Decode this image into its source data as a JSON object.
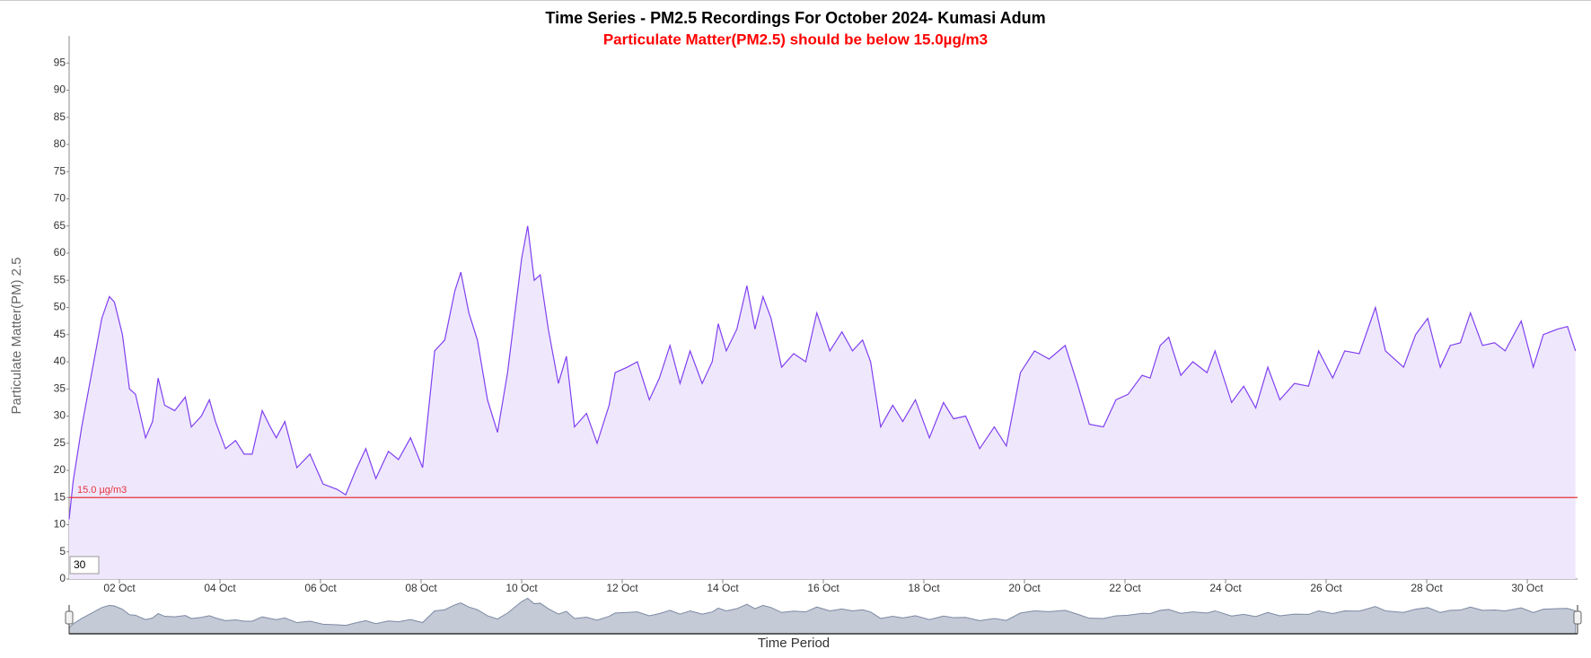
{
  "chart_data": {
    "type": "area",
    "title": "Time Series - PM2.5 Recordings For October 2024- Kumasi Adum",
    "subtitle": "Particulate Matter(PM2.5) should be below 15.0µg/m3",
    "y_label": "Particulate Matter(PM) 2.5",
    "x_label": "Time Period",
    "range_box": "30",
    "threshold": {
      "value": 15,
      "label": "15.0 µg/m3",
      "color": "#e8323c"
    },
    "line_color": "#8040f0",
    "fill_color": "#efe8fd",
    "grid": false,
    "xlim": [
      1,
      31
    ],
    "ylim": [
      0,
      100
    ],
    "yticks": [
      0,
      5,
      10,
      15,
      20,
      25,
      30,
      35,
      40,
      45,
      50,
      55,
      60,
      65,
      70,
      75,
      80,
      85,
      90,
      95
    ],
    "xticks": [
      {
        "value": 2,
        "label": "02 Oct"
      },
      {
        "value": 4,
        "label": "04 Oct"
      },
      {
        "value": 6,
        "label": "06 Oct"
      },
      {
        "value": 8,
        "label": "08 Oct"
      },
      {
        "value": 10,
        "label": "10 Oct"
      },
      {
        "value": 12,
        "label": "12 Oct"
      },
      {
        "value": 14,
        "label": "14 Oct"
      },
      {
        "value": 16,
        "label": "16 Oct"
      },
      {
        "value": 18,
        "label": "18 Oct"
      },
      {
        "value": 20,
        "label": "20 Oct"
      },
      {
        "value": 22,
        "label": "22 Oct"
      },
      {
        "value": 24,
        "label": "24 Oct"
      },
      {
        "value": 26,
        "label": "26 Oct"
      },
      {
        "value": 28,
        "label": "28 Oct"
      },
      {
        "value": 30,
        "label": "30 Oct"
      }
    ],
    "x": [
      1.0,
      1.08,
      1.25,
      1.45,
      1.65,
      1.8,
      1.9,
      2.06,
      2.2,
      2.32,
      2.52,
      2.66,
      2.77,
      2.9,
      3.1,
      3.31,
      3.43,
      3.63,
      3.79,
      3.91,
      4.11,
      4.31,
      4.48,
      4.64,
      4.84,
      5.0,
      5.12,
      5.29,
      5.53,
      5.79,
      6.05,
      6.33,
      6.5,
      6.7,
      6.9,
      7.1,
      7.35,
      7.55,
      7.79,
      8.03,
      8.27,
      8.47,
      8.67,
      8.79,
      8.95,
      9.12,
      9.32,
      9.52,
      9.72,
      9.88,
      10.0,
      10.12,
      10.25,
      10.37,
      10.53,
      10.73,
      10.89,
      11.05,
      11.29,
      11.5,
      11.74,
      11.86,
      12.1,
      12.3,
      12.54,
      12.74,
      12.95,
      13.15,
      13.35,
      13.59,
      13.79,
      13.91,
      14.07,
      14.28,
      14.48,
      14.64,
      14.8,
      14.96,
      15.17,
      15.41,
      15.65,
      15.87,
      16.13,
      16.37,
      16.58,
      16.78,
      16.94,
      17.14,
      17.38,
      17.58,
      17.83,
      18.11,
      18.39,
      18.59,
      18.83,
      19.11,
      19.4,
      19.64,
      19.92,
      20.2,
      20.49,
      20.81,
      21.05,
      21.29,
      21.57,
      21.82,
      22.06,
      22.34,
      22.5,
      22.7,
      22.87,
      23.11,
      23.35,
      23.63,
      23.79,
      24.12,
      24.36,
      24.6,
      24.84,
      25.08,
      25.37,
      25.65,
      25.85,
      26.13,
      26.37,
      26.66,
      26.98,
      27.18,
      27.54,
      27.78,
      28.02,
      28.27,
      28.47,
      28.67,
      28.87,
      29.11,
      29.35,
      29.56,
      29.88,
      30.12,
      30.32,
      30.6,
      30.8,
      30.96
    ],
    "series": [
      {
        "name": "PM2.5",
        "values": [
          11,
          18,
          28,
          38,
          48,
          52,
          51,
          45,
          35,
          34,
          26,
          29,
          37,
          32,
          31,
          33.5,
          28,
          30,
          33,
          29,
          24,
          25.5,
          23,
          23,
          31,
          28,
          26,
          29,
          20.5,
          23,
          17.5,
          16.5,
          15.5,
          20,
          24,
          18.5,
          23.5,
          22,
          26,
          20.5,
          42,
          44,
          53,
          56.5,
          49,
          44,
          33,
          27,
          38,
          50,
          59,
          65,
          55,
          56,
          46,
          36,
          41,
          28,
          30.5,
          25,
          32,
          38,
          39,
          40,
          33,
          37,
          43,
          36,
          42,
          36,
          40,
          47,
          42,
          46,
          54,
          46,
          52,
          48,
          39,
          41.5,
          40,
          49,
          42,
          45.5,
          42,
          44,
          40,
          28,
          32,
          29,
          33,
          26,
          32.5,
          29.5,
          30,
          24,
          28,
          24.5,
          38,
          42,
          40.5,
          43,
          36,
          28.5,
          28,
          33,
          34,
          37.5,
          37,
          43,
          44.5,
          37.5,
          40,
          38,
          42,
          32.5,
          35.5,
          31.5,
          39,
          33,
          36,
          35.5,
          42,
          37,
          42,
          41.5,
          50,
          42,
          39,
          45,
          48,
          39,
          43,
          43.5,
          49,
          43,
          43.5,
          42,
          47.5,
          39,
          45,
          46,
          46.5,
          42
        ]
      }
    ]
  }
}
